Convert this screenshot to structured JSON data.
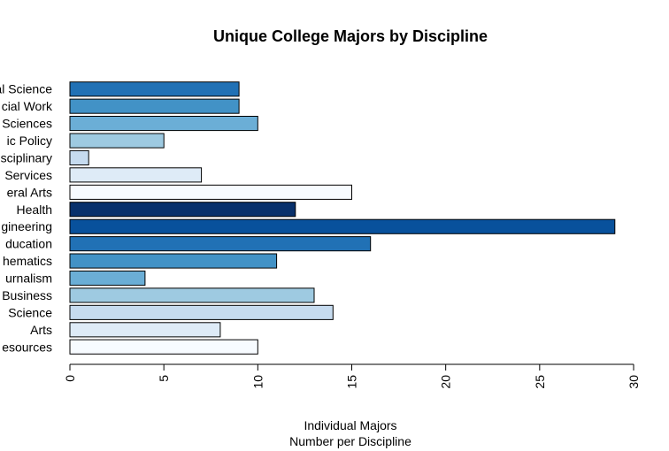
{
  "chart_data": {
    "type": "bar",
    "orientation": "horizontal",
    "title": "Unique College Majors by Discipline",
    "xlabel_lines": [
      "Individual Majors",
      "Number per Discipline"
    ],
    "ylabel": "",
    "xlim": [
      0,
      30
    ],
    "xticks": [
      0,
      5,
      10,
      15,
      20,
      25,
      30
    ],
    "grid": false,
    "legend": "none",
    "categories": [
      "Social Science",
      "cial Work",
      "Sciences",
      "ic Policy",
      "sciplinary",
      "Services",
      "eral Arts",
      "Health",
      "gineering",
      "ducation",
      "hematics",
      "urnalism",
      "Business",
      "Science",
      "Arts",
      "esources"
    ],
    "values": [
      9,
      9,
      10,
      5,
      1,
      7,
      15,
      12,
      29,
      16,
      11,
      4,
      13,
      14,
      8,
      10
    ],
    "colors": [
      "#2171b5",
      "#4292c6",
      "#6baed6",
      "#9ecae1",
      "#c6dbef",
      "#deebf7",
      "#f7fbff",
      "#08306b",
      "#08519c",
      "#2171b5",
      "#4292c6",
      "#6baed6",
      "#9ecae1",
      "#c6dbef",
      "#deebf7",
      "#f7fbff"
    ]
  }
}
